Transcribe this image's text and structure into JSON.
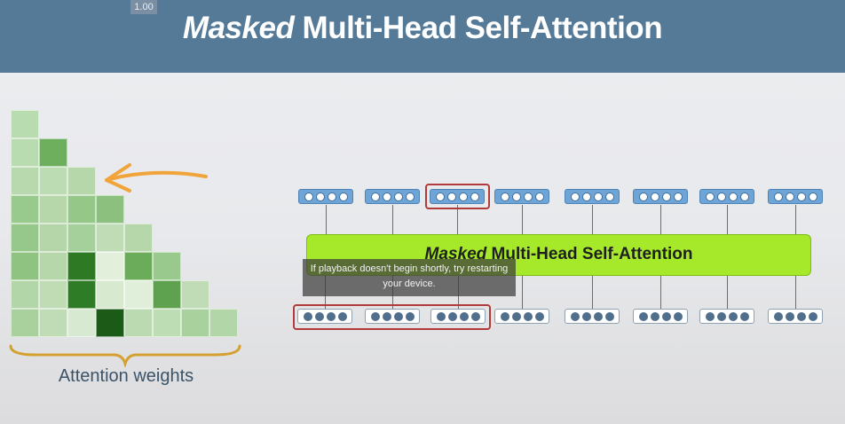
{
  "header": {
    "title_em": "Masked",
    "title_rest": " Multi-Head Self-Attention",
    "speed_badge": "1.00",
    "bg_color": "#557a98"
  },
  "attention_grid": {
    "label": "Attention weights",
    "rows": [
      [
        "#b9dbb0"
      ],
      [
        "#b9dbb0",
        "#6eaf5d"
      ],
      [
        "#b7d9ad",
        "#bcdcb3",
        "#b5d7aa"
      ],
      [
        "#98c98d",
        "#b5d7aa",
        "#94c788",
        "#8cc07f"
      ],
      [
        "#97c88b",
        "#b4d6a9",
        "#a6d09b",
        "#bfdcb6",
        "#b5d7aa"
      ],
      [
        "#8fc382",
        "#b5d7aa",
        "#2e7a24",
        "#e1efdb",
        "#6aac5a",
        "#99c98c"
      ],
      [
        "#b3d6a8",
        "#bfdcb5",
        "#2f7c26",
        "#d7eacf",
        "#e0efda",
        "#5ea24f",
        "#c0dcb6"
      ],
      [
        "#a8d19e",
        "#bfdcb6",
        "#d7e9d0",
        "#1c5a17",
        "#bcdab2",
        "#bdddb4",
        "#a8d19e",
        "#b3d6a9"
      ]
    ]
  },
  "annotations": {
    "arrow_color": "#f0a43a",
    "brace_color": "#d4a030",
    "highlight_color": "#b23a3a"
  },
  "attention_block": {
    "title_em": "Masked",
    "title_rest": " Multi-Head Self-Attention",
    "color": "#a5e92a"
  },
  "output_tokens": {
    "count": 8,
    "dots_per_token": 4,
    "highlighted_index": 2
  },
  "input_tokens": {
    "count": 8,
    "dots_per_token": 4,
    "highlighted_range": [
      0,
      2
    ]
  },
  "caption": {
    "line1": "If playback doesn't begin shortly, try restarting",
    "line2": "your device."
  }
}
